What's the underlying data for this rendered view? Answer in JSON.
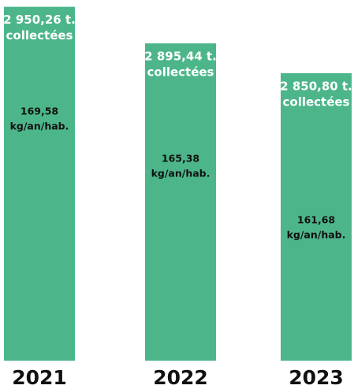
{
  "chart_data": {
    "type": "bar",
    "categories": [
      "2021",
      "2022",
      "2023"
    ],
    "series": [
      {
        "values": [
          2950.26,
          2895.44,
          2850.8
        ],
        "value_labels": [
          "2 950,26 t.",
          "2 895,44 t.",
          "2 850,80 t."
        ],
        "color": "#4cb68a"
      }
    ],
    "value_unit_label": "collectées",
    "per_capita": {
      "values": [
        169.58,
        165.38,
        161.68
      ],
      "value_labels": [
        "169,58",
        "165,38",
        "161,68"
      ],
      "unit_label": "kg/an/hab."
    },
    "ylim": [
      2420,
      2951
    ]
  }
}
